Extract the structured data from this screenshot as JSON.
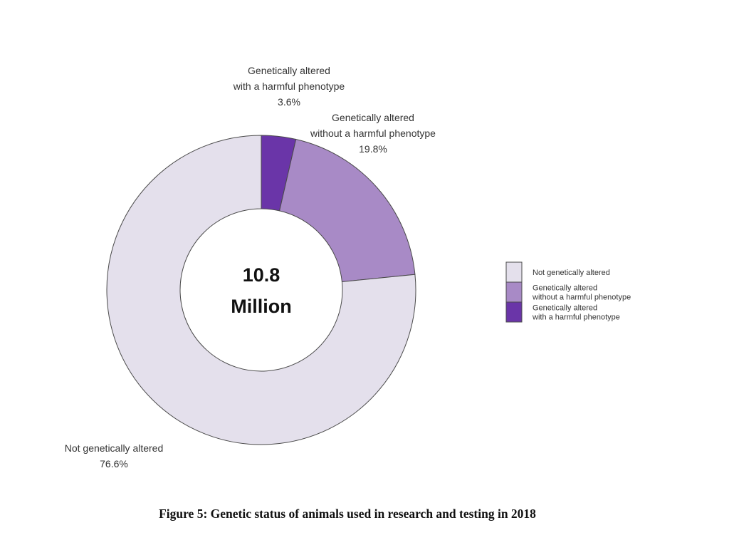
{
  "chart_data": {
    "type": "pie",
    "style": "donut",
    "center_text": [
      "10.8",
      "Million"
    ],
    "caption": "Figure 5: Genetic status of animals used in research and testing in 2018",
    "legend_position": "right",
    "slices": [
      {
        "key": "harmful",
        "label_lines": [
          "Genetically altered",
          "with a harmful phenotype"
        ],
        "value_label": "3.6%",
        "value": 3.6,
        "color": "#6a35a8"
      },
      {
        "key": "without",
        "label_lines": [
          "Genetically altered",
          "without a harmful phenotype"
        ],
        "value_label": "19.8%",
        "value": 19.8,
        "color": "#a88ac6"
      },
      {
        "key": "not",
        "label_lines": [
          "Not genetically altered"
        ],
        "value_label": "76.6%",
        "value": 76.6,
        "color": "#e4e0ec"
      }
    ],
    "legend": [
      {
        "lines": [
          "Not genetically altered"
        ],
        "color": "#e4e0ec"
      },
      {
        "lines": [
          "Genetically altered",
          "without a harmful phenotype"
        ],
        "color": "#a88ac6"
      },
      {
        "lines": [
          "Genetically altered",
          "with a harmful phenotype"
        ],
        "color": "#6a35a8"
      }
    ]
  }
}
